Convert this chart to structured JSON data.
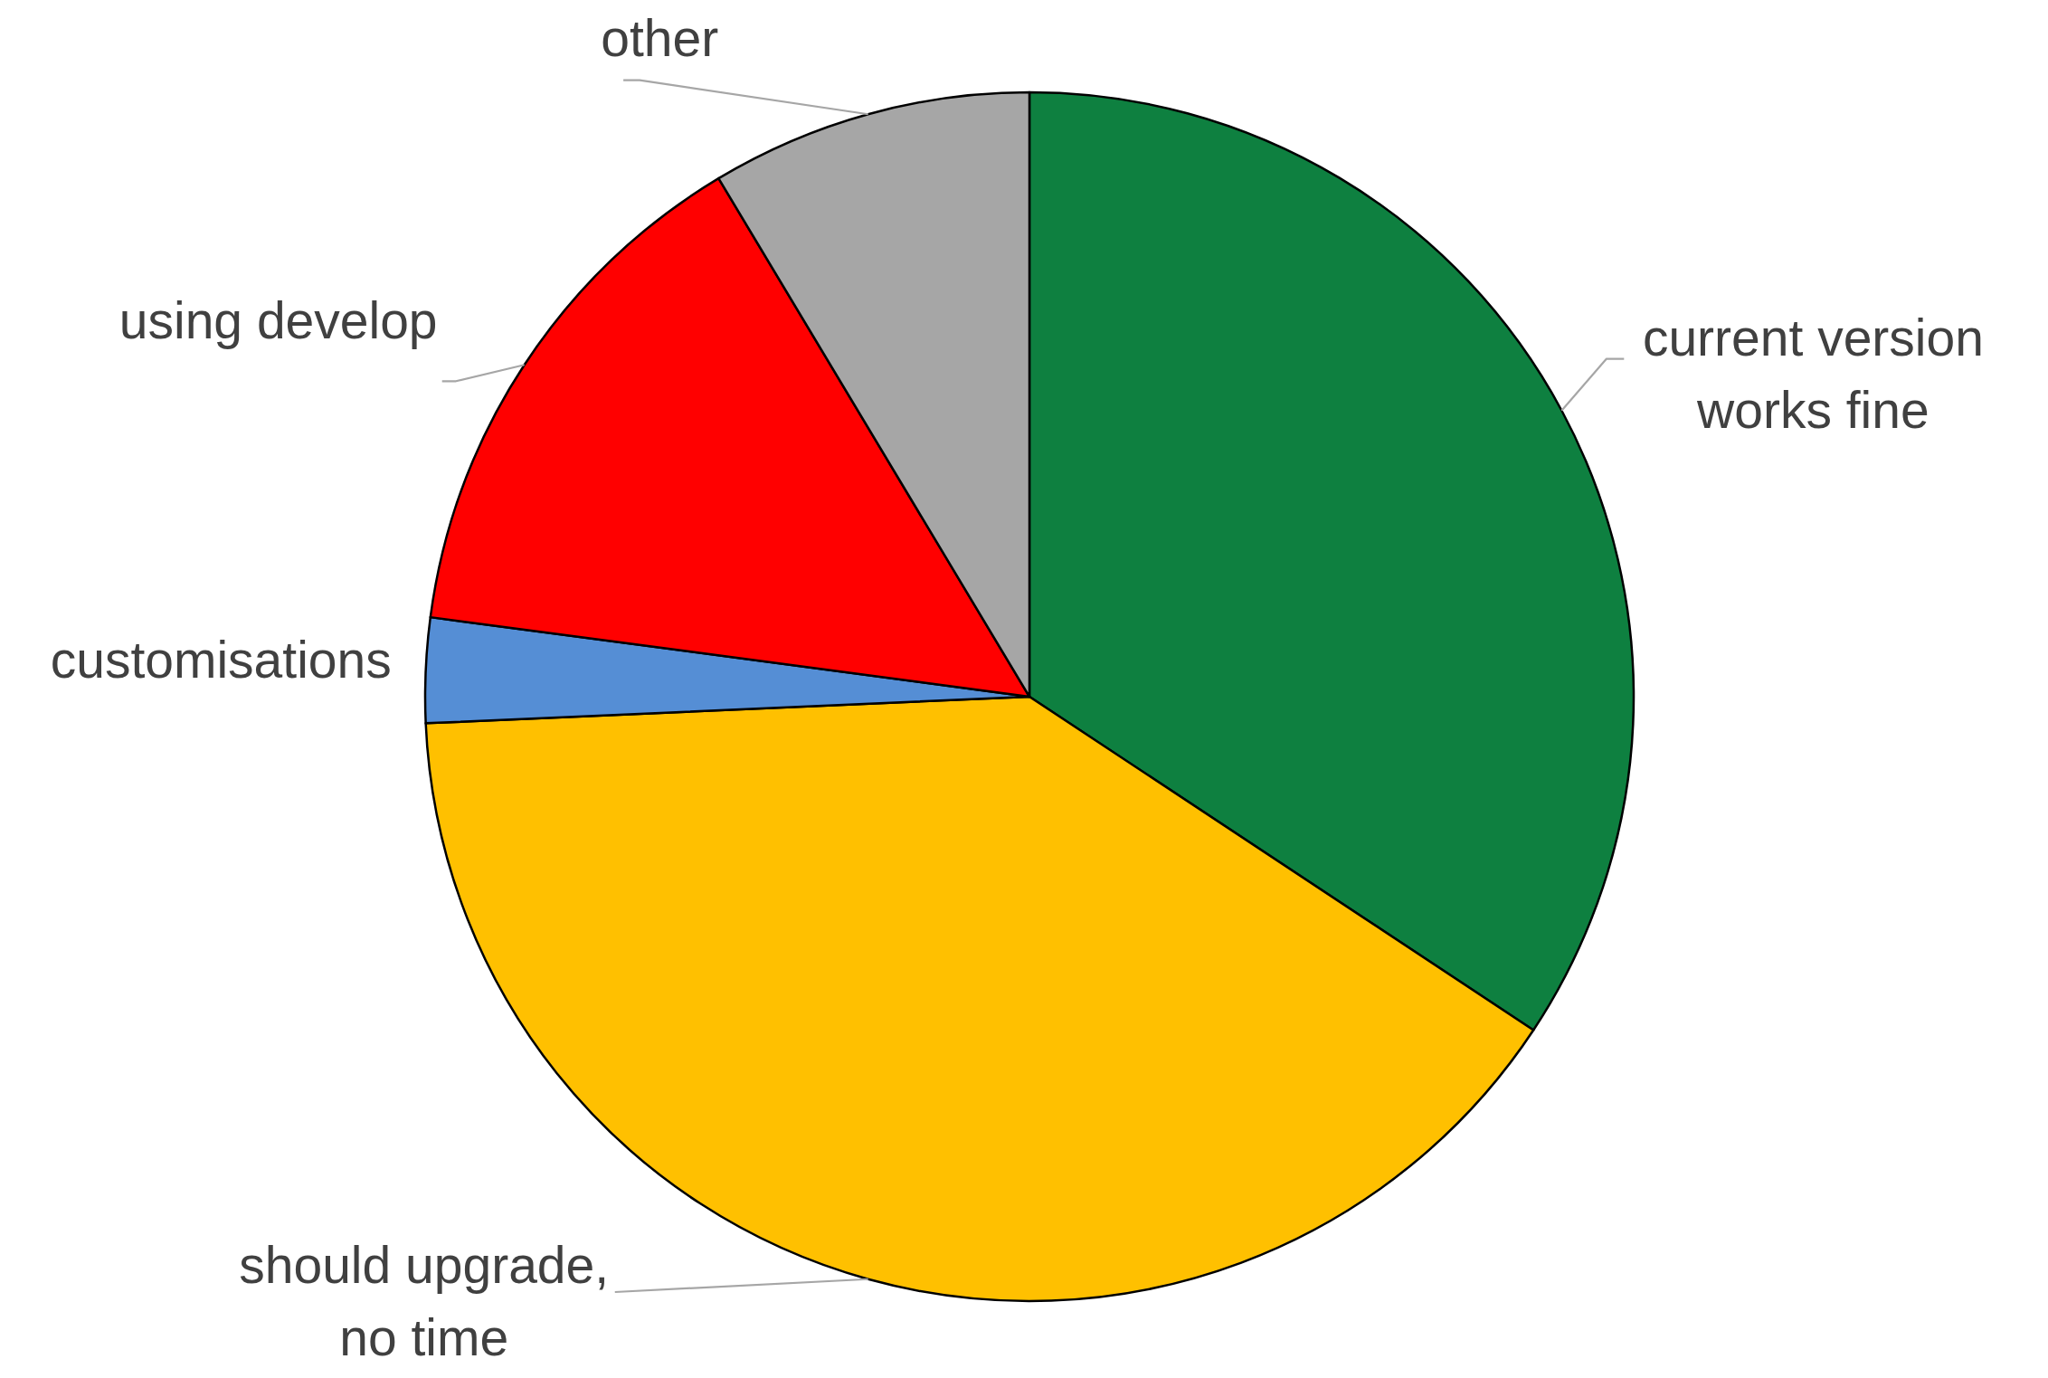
{
  "chart_data": {
    "type": "pie",
    "categories": [
      "current version works fine",
      "should upgrade, no time",
      "customisations",
      "using develop",
      "other"
    ],
    "values": [
      34.3,
      40.0,
      2.8,
      14.3,
      8.6
    ],
    "colors": [
      "#0e8040",
      "#ffc000",
      "#558ed5",
      "#ff0000",
      "#a6a6a6"
    ]
  }
}
